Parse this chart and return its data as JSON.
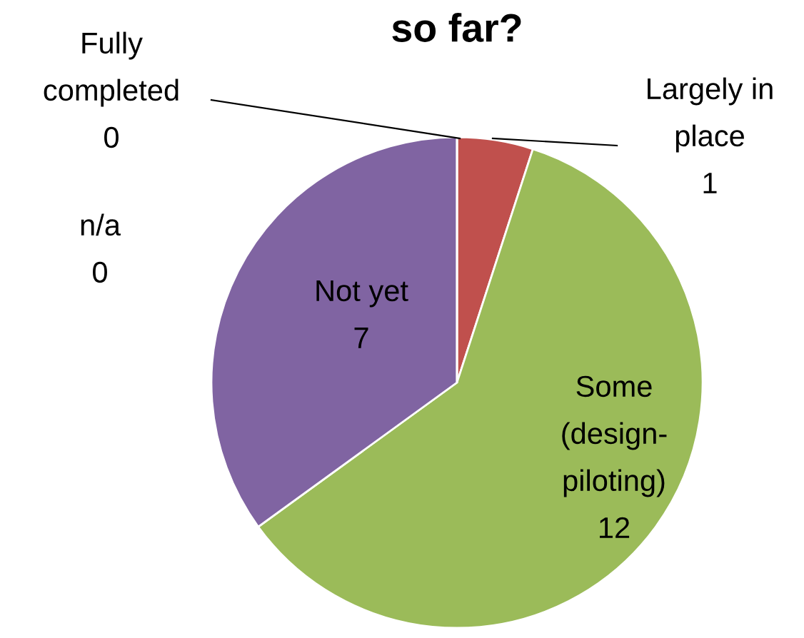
{
  "chart_data": {
    "type": "pie",
    "title": "so far?",
    "categories": [
      "Fully\ncompleted",
      "Largely in\nplace",
      "Some\n(design-\npiloting)",
      "Not yet",
      "n/a"
    ],
    "values": [
      0,
      1,
      12,
      7,
      0
    ],
    "colors": [
      "#4f81bd",
      "#c0504d",
      "#9bbb59",
      "#8064a2",
      "#4bacc6"
    ],
    "value_labels": [
      "0",
      "1",
      "12",
      "7",
      "0"
    ],
    "legend": false
  }
}
